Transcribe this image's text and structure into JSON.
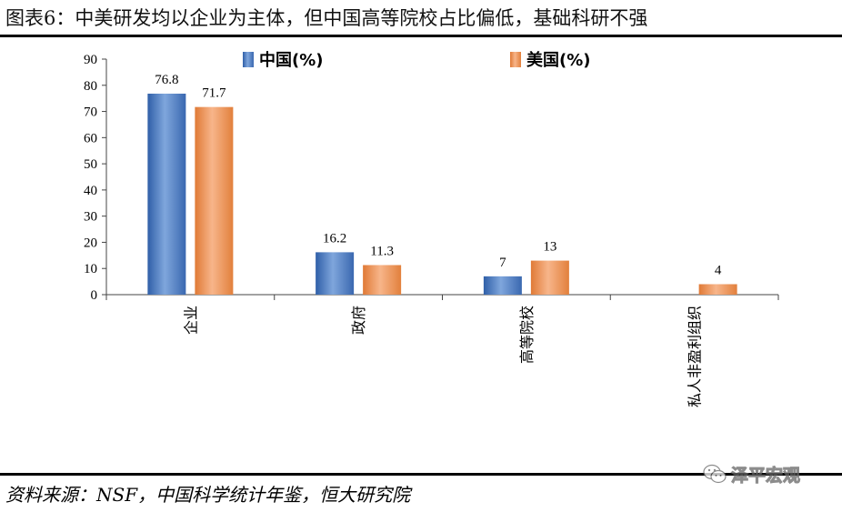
{
  "figure": {
    "title": "图表6：中美研发均以企业为主体，但中国高等院校占比偏低，基础科研不强",
    "source": "资料来源：NSF，中国科学统计年鉴，恒大研究院",
    "watermark": "泽平宏观",
    "watermark_icon": "wechat-icon"
  },
  "chart_data": {
    "type": "bar",
    "categories": [
      "企业",
      "政府",
      "高等院校",
      "私人非盈利组织"
    ],
    "series": [
      {
        "name": "中国(%)",
        "values": [
          76.8,
          16.2,
          7,
          null
        ],
        "labels": [
          "76.8",
          "16.2",
          "7",
          ""
        ],
        "color": "#4f7fc3"
      },
      {
        "name": "美国(%)",
        "values": [
          71.7,
          11.3,
          13,
          4
        ],
        "labels": [
          "71.7",
          "11.3",
          "13",
          "4"
        ],
        "color": "#ec8d4f"
      }
    ],
    "ylim": [
      0,
      90
    ],
    "yticks": [
      "0",
      "10",
      "20",
      "30",
      "40",
      "50",
      "60",
      "70",
      "80",
      "90"
    ],
    "legend": "top",
    "grid": false,
    "xlabel": "",
    "ylabel": ""
  }
}
